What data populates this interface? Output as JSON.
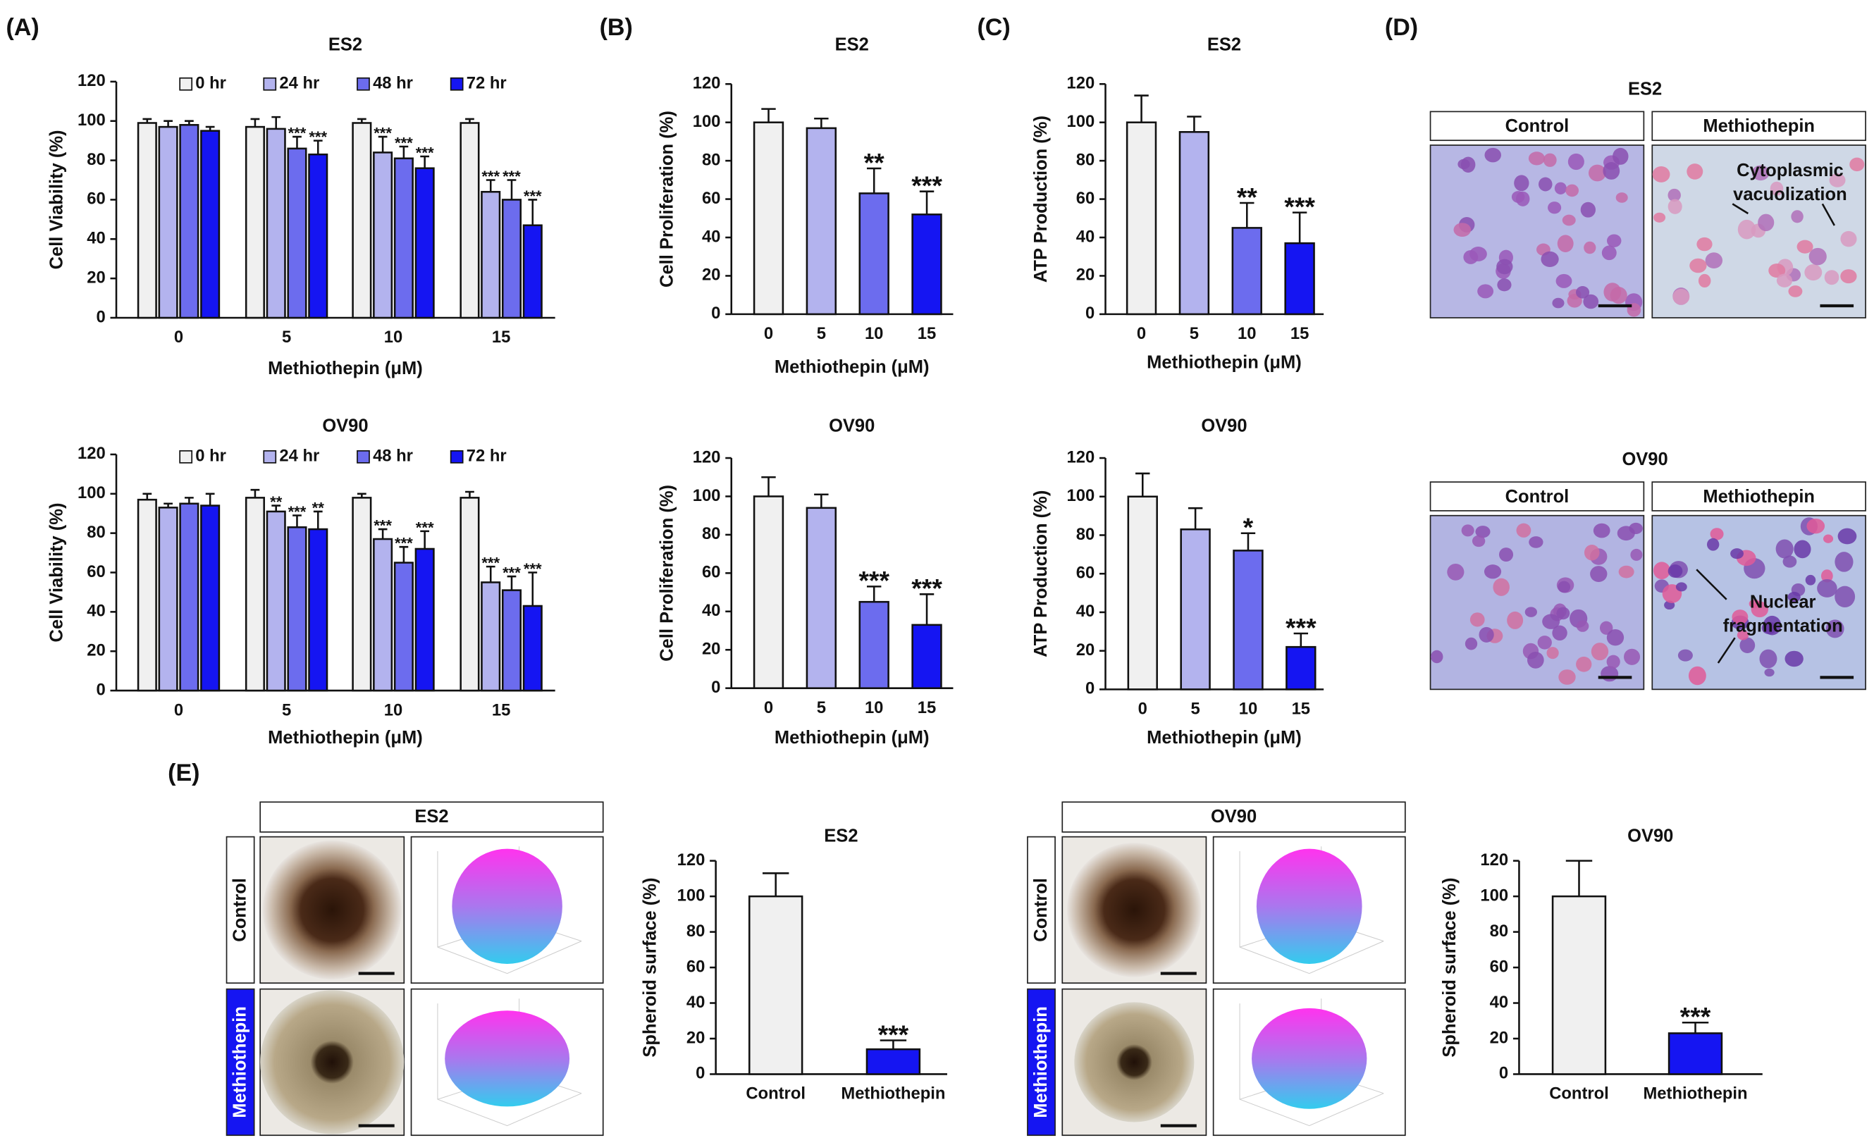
{
  "panel_labels": [
    "(A)",
    "(B)",
    "(C)",
    "(D)",
    "(E)"
  ],
  "figure_d": [
    {
      "title": "ES2",
      "columns": [
        "Control",
        "Methiothepin"
      ],
      "note": [
        "Cytoplasmic",
        "vacuolization"
      ]
    },
    {
      "title": "OV90",
      "columns": [
        "Control",
        "Methiothepin"
      ],
      "note": [
        "Nuclear",
        "fragmentation"
      ]
    }
  ],
  "figure_e": [
    {
      "title": "ES2",
      "rows": [
        "Control",
        "Methiothepin"
      ]
    },
    {
      "title": "OV90",
      "rows": [
        "Control",
        "Methiothepin"
      ]
    }
  ],
  "chart_data": [
    {
      "type": "grouped_bar",
      "title": "ES2",
      "x_label": "Methiothepin (μM)",
      "y_label": "Cell Viability (%)",
      "categories": [
        "0",
        "5",
        "10",
        "15"
      ],
      "ylim": [
        0,
        120
      ],
      "yticks": [
        0,
        20,
        40,
        60,
        80,
        100,
        120
      ],
      "series": [
        {
          "name": "0 hr",
          "color": "#f0f0f0",
          "values": [
            99,
            97,
            99,
            99
          ],
          "errors": [
            2,
            4,
            2,
            2
          ],
          "annotations": [
            null,
            null,
            null,
            null
          ]
        },
        {
          "name": "24 hr",
          "color": "#b3b3ee",
          "values": [
            97,
            96,
            84,
            64
          ],
          "errors": [
            3,
            6,
            8,
            6
          ],
          "annotations": [
            null,
            null,
            "***",
            "***"
          ]
        },
        {
          "name": "48 hr",
          "color": "#6c6cee",
          "values": [
            98,
            86,
            81,
            60
          ],
          "errors": [
            2,
            6,
            6,
            10
          ],
          "annotations": [
            null,
            "***",
            "***",
            "***"
          ]
        },
        {
          "name": "72 hr",
          "color": "#1515f2",
          "values": [
            95,
            83,
            76,
            47
          ],
          "errors": [
            2,
            7,
            6,
            13
          ],
          "annotations": [
            null,
            "***",
            "***",
            "***"
          ]
        }
      ]
    },
    {
      "type": "grouped_bar",
      "title": "OV90",
      "x_label": "Methiothepin (μM)",
      "y_label": "Cell Viability (%)",
      "categories": [
        "0",
        "5",
        "10",
        "15"
      ],
      "ylim": [
        0,
        120
      ],
      "yticks": [
        0,
        20,
        40,
        60,
        80,
        100,
        120
      ],
      "series": [
        {
          "name": "0 hr",
          "color": "#f0f0f0",
          "values": [
            97,
            98,
            98,
            98
          ],
          "errors": [
            3,
            4,
            2,
            3
          ],
          "annotations": [
            null,
            null,
            null,
            null
          ]
        },
        {
          "name": "24 hr",
          "color": "#b3b3ee",
          "values": [
            93,
            91,
            77,
            55
          ],
          "errors": [
            2,
            3,
            5,
            8
          ],
          "annotations": [
            null,
            "**",
            "***",
            "***"
          ]
        },
        {
          "name": "48 hr",
          "color": "#6c6cee",
          "values": [
            95,
            83,
            65,
            51
          ],
          "errors": [
            3,
            6,
            8,
            7
          ],
          "annotations": [
            null,
            "***",
            "***",
            "***"
          ]
        },
        {
          "name": "72 hr",
          "color": "#1515f2",
          "values": [
            94,
            82,
            72,
            43
          ],
          "errors": [
            6,
            9,
            9,
            17
          ],
          "annotations": [
            null,
            "**",
            "***",
            "***"
          ]
        }
      ]
    },
    {
      "type": "bar",
      "title": "ES2",
      "x_label": "Methiothepin (μM)",
      "y_label": "Cell Proliferation (%)",
      "categories": [
        "0",
        "5",
        "10",
        "15"
      ],
      "values": [
        100,
        97,
        63,
        52
      ],
      "errors": [
        7,
        5,
        13,
        12
      ],
      "annotations": [
        null,
        null,
        "**",
        "***"
      ],
      "colors": [
        "#f0f0f0",
        "#b3b3ee",
        "#6c6cee",
        "#1515f2"
      ],
      "ylim": [
        0,
        120
      ],
      "yticks": [
        0,
        20,
        40,
        60,
        80,
        100,
        120
      ]
    },
    {
      "type": "bar",
      "title": "OV90",
      "x_label": "Methiothepin (μM)",
      "y_label": "Cell Proliferation (%)",
      "categories": [
        "0",
        "5",
        "10",
        "15"
      ],
      "values": [
        100,
        94,
        45,
        33
      ],
      "errors": [
        10,
        7,
        8,
        16
      ],
      "annotations": [
        null,
        null,
        "***",
        "***"
      ],
      "colors": [
        "#f0f0f0",
        "#b3b3ee",
        "#6c6cee",
        "#1515f2"
      ],
      "ylim": [
        0,
        120
      ],
      "yticks": [
        0,
        20,
        40,
        60,
        80,
        100,
        120
      ]
    },
    {
      "type": "bar",
      "title": "ES2",
      "x_label": "Methiothepin (μM)",
      "y_label": "ATP Production (%)",
      "categories": [
        "0",
        "5",
        "10",
        "15"
      ],
      "values": [
        100,
        95,
        45,
        37
      ],
      "errors": [
        14,
        8,
        13,
        16
      ],
      "annotations": [
        null,
        null,
        "**",
        "***"
      ],
      "colors": [
        "#f0f0f0",
        "#b3b3ee",
        "#6c6cee",
        "#1515f2"
      ],
      "ylim": [
        0,
        120
      ],
      "yticks": [
        0,
        20,
        40,
        60,
        80,
        100,
        120
      ]
    },
    {
      "type": "bar",
      "title": "OV90",
      "x_label": "Methiothepin (μM)",
      "y_label": "ATP Production (%)",
      "categories": [
        "0",
        "5",
        "10",
        "15"
      ],
      "values": [
        100,
        83,
        72,
        22
      ],
      "errors": [
        12,
        11,
        9,
        7
      ],
      "annotations": [
        null,
        null,
        "*",
        "***"
      ],
      "colors": [
        "#f0f0f0",
        "#b3b3ee",
        "#6c6cee",
        "#1515f2"
      ],
      "ylim": [
        0,
        120
      ],
      "yticks": [
        0,
        20,
        40,
        60,
        80,
        100,
        120
      ]
    },
    {
      "type": "bar",
      "title": "ES2",
      "y_label": "Spheroid surface (%)",
      "categories": [
        "Control",
        "Methiothepin"
      ],
      "values": [
        100,
        14
      ],
      "errors": [
        13,
        5
      ],
      "annotations": [
        null,
        "***"
      ],
      "colors": [
        "#f0f0f0",
        "#1515f2"
      ],
      "ylim": [
        0,
        120
      ],
      "yticks": [
        0,
        20,
        40,
        60,
        80,
        100,
        120
      ]
    },
    {
      "type": "bar",
      "title": "OV90",
      "y_label": "Spheroid surface (%)",
      "categories": [
        "Control",
        "Methiothepin"
      ],
      "values": [
        100,
        23
      ],
      "errors": [
        20,
        6
      ],
      "annotations": [
        null,
        "***"
      ],
      "colors": [
        "#f0f0f0",
        "#1515f2"
      ],
      "ylim": [
        0,
        120
      ],
      "yticks": [
        0,
        20,
        40,
        60,
        80,
        100,
        120
      ]
    }
  ]
}
